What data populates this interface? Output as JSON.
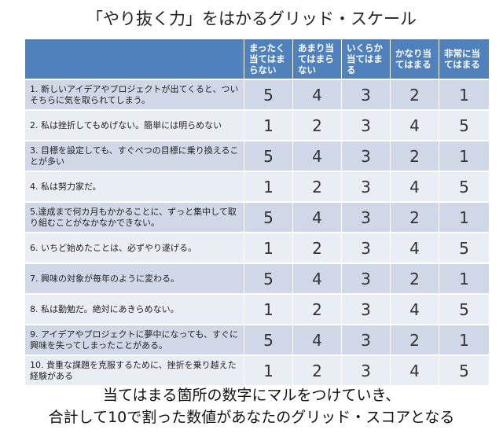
{
  "title": "「やり抜く力」をはかるグリッド・スケール",
  "headers": [
    "",
    "まったく当てはまらない",
    "あまり当てはまらない",
    "いくらか当てはまる",
    "かなり当てはまる",
    "非常に当てはまる"
  ],
  "rows": [
    {
      "q": "1. 新しいアイデアやプロジェクトが出てくると、ついそちらに気を取られてしまう。",
      "s": [
        "5",
        "4",
        "3",
        "2",
        "1"
      ]
    },
    {
      "q": "2. 私は挫折してもめげない。簡単には明らめない",
      "s": [
        "1",
        "2",
        "3",
        "4",
        "5"
      ]
    },
    {
      "q": "3. 目標を設定しても、すぐべつの目標に乗り換えることが多い",
      "s": [
        "5",
        "4",
        "3",
        "2",
        "1"
      ]
    },
    {
      "q": "4. 私は努力家だ。",
      "s": [
        "1",
        "2",
        "3",
        "4",
        "5"
      ]
    },
    {
      "q": "5.達成まで何カ月もかかることに、ずっと集中して取り組むことがなかなかできない。",
      "s": [
        "5",
        "4",
        "3",
        "2",
        "1"
      ]
    },
    {
      "q": "6. いちど始めたことは、必ずやり遂げる。",
      "s": [
        "1",
        "2",
        "3",
        "4",
        "5"
      ]
    },
    {
      "q": "7. 興味の対象が毎年のように変わる。",
      "s": [
        "5",
        "4",
        "3",
        "2",
        "1"
      ]
    },
    {
      "q": "8. 私は勤勉だ。絶対にあきらめない。",
      "s": [
        "1",
        "2",
        "3",
        "4",
        "5"
      ]
    },
    {
      "q": "9. アイデアやプロジェクトに夢中になっても、すぐに興味を失ってしまったことがある。",
      "s": [
        "5",
        "4",
        "3",
        "2",
        "1"
      ]
    },
    {
      "q": "10. 貴重な課題を克服するために、挫折を乗り越えた経験がある",
      "s": [
        "1",
        "2",
        "3",
        "4",
        "5"
      ]
    }
  ],
  "footer": {
    "line1": "当てはまる箇所の数字にマルをつけていき、",
    "line2": "合計して10で割った数値があなたのグリッド・スコアとなる"
  },
  "colors": {
    "header": "#4f81bd",
    "row_dark": "#d0d8e8",
    "row_light": "#e9edf4"
  }
}
